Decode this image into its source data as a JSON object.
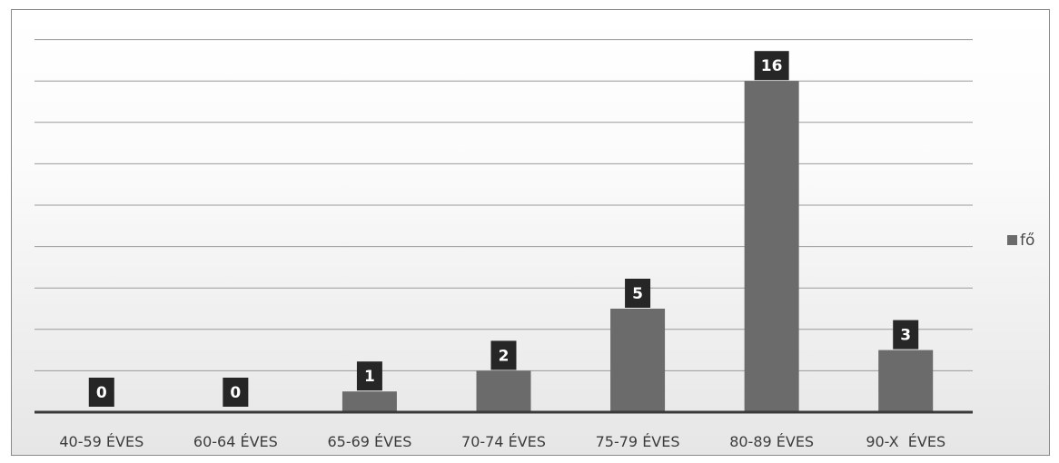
{
  "chart_data": {
    "type": "bar",
    "categories": [
      "40-59 ÉVES",
      "60-64 ÉVES",
      "65-69 ÉVES",
      "70-74 ÉVES",
      "75-79 ÉVES",
      "80-89 ÉVES",
      "90-X  ÉVES"
    ],
    "series": [
      {
        "name": "fő",
        "values": [
          0,
          0,
          1,
          2,
          5,
          16,
          3
        ]
      }
    ],
    "ylim": [
      0,
      18
    ],
    "y_gridlines_every": 2,
    "grid": true,
    "legend": "right",
    "data_labels": true,
    "colors": {
      "bar": "#6b6b6b",
      "label_box": "#262626"
    }
  }
}
